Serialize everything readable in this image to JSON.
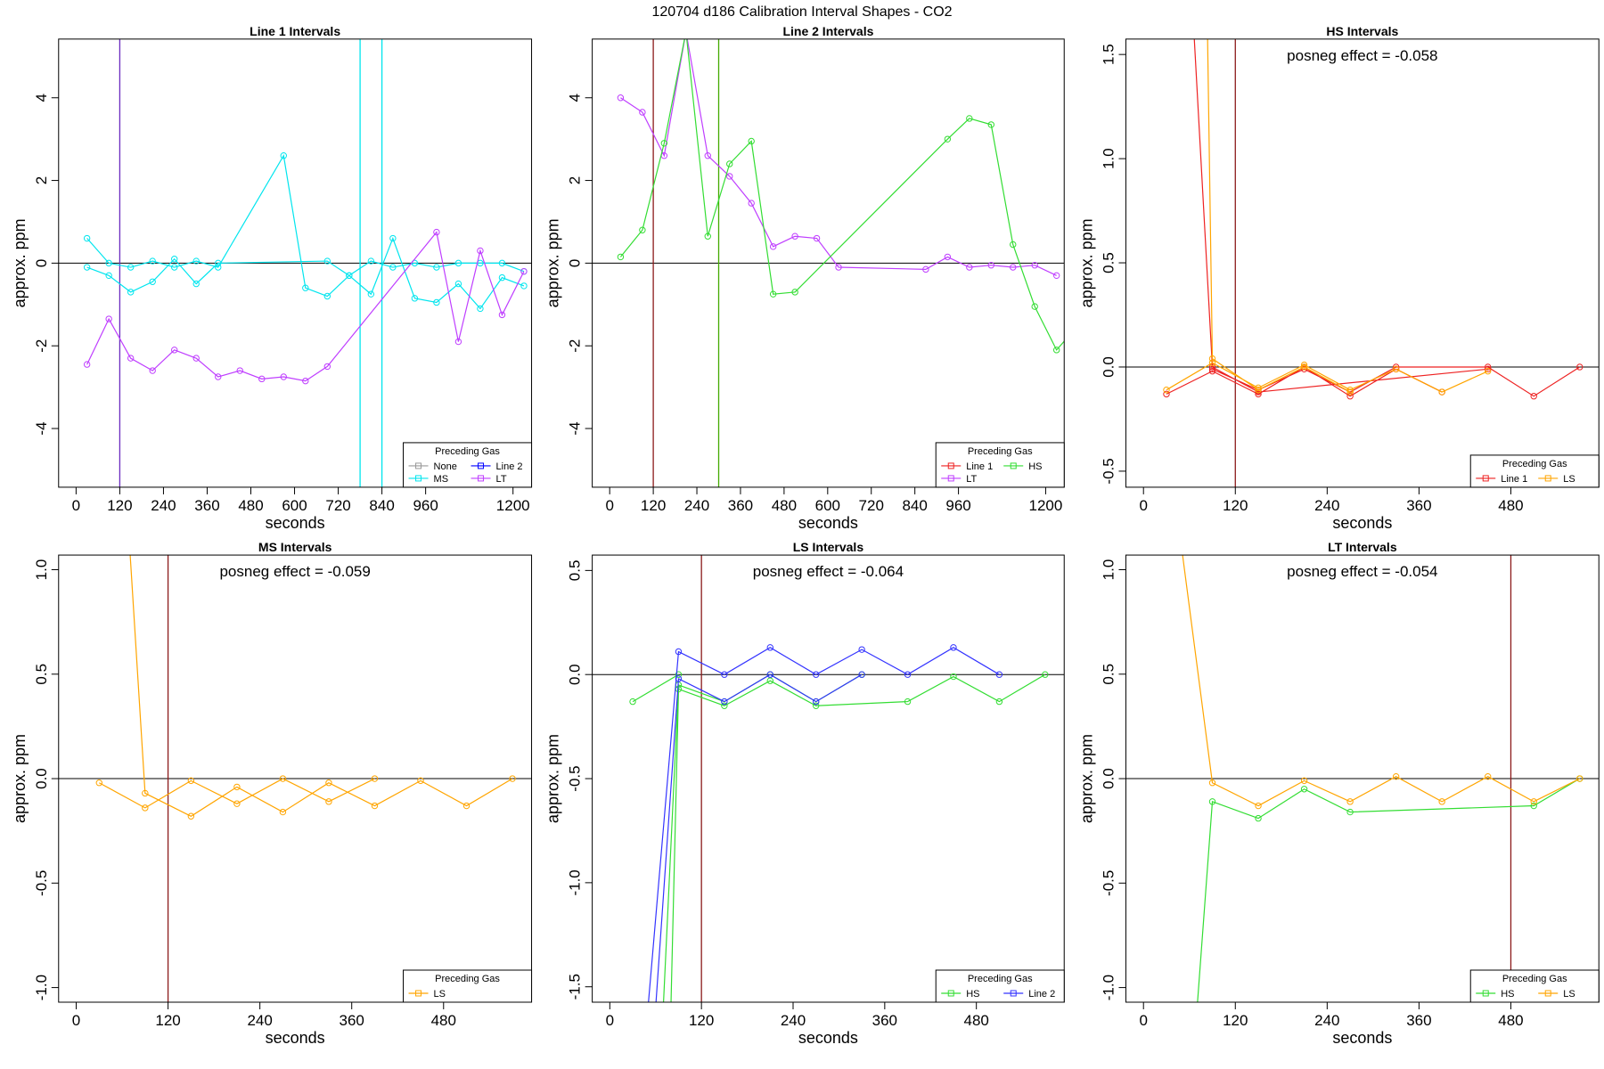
{
  "title": "120704  d186   Calibration Interval Shapes - CO2",
  "chart_data": [
    {
      "type": "line",
      "title": "Line 1 Intervals",
      "xlabel": "seconds",
      "ylabel": "approx. ppm",
      "xlim": [
        -48,
        1251
      ],
      "ylim": [
        -5.42,
        5.42
      ],
      "xticks": [
        0,
        120,
        240,
        360,
        480,
        600,
        720,
        840,
        960,
        1200
      ],
      "yticks": [
        -4,
        -2,
        0,
        2,
        4
      ],
      "hline": 0,
      "vlines": [
        {
          "value": 120,
          "color": "#6a2cbf"
        },
        {
          "value": 780,
          "color": "#00e5ee"
        },
        {
          "value": 840,
          "color": "#00e5ee"
        }
      ],
      "legend_title": "Preceding Gas",
      "legend": "bottomright",
      "series": [
        {
          "name": "None",
          "color": "#999999",
          "x": [],
          "values": []
        },
        {
          "name": "MS",
          "color": "#00e5ee",
          "x": [
            30,
            90,
            150,
            210,
            270,
            330,
            390,
            570,
            630,
            690,
            750,
            810,
            870,
            930,
            990,
            1050,
            1110,
            1170,
            1230,
            null,
            30,
            90,
            150,
            210,
            270,
            330,
            390,
            690,
            750,
            810,
            870,
            930,
            990,
            1050,
            1110,
            1170,
            1230
          ],
          "values": [
            0.6,
            0.0,
            -0.1,
            0.05,
            -0.1,
            0.05,
            -0.1,
            2.6,
            -0.6,
            -0.8,
            -0.3,
            -0.75,
            0.6,
            -0.85,
            -0.95,
            -0.5,
            -1.1,
            -0.35,
            -0.55,
            null,
            -0.1,
            -0.3,
            -0.7,
            -0.45,
            0.1,
            -0.5,
            0.0,
            0.05,
            -0.3,
            0.05,
            -0.1,
            0.0,
            -0.1,
            0.0,
            0.0,
            0.0,
            -0.2
          ]
        },
        {
          "name": "Line 2",
          "color": "#0000ff",
          "x": [],
          "values": []
        },
        {
          "name": "LT",
          "color": "#bf3eff",
          "x": [
            30,
            90,
            150,
            210,
            270,
            330,
            390,
            450,
            510,
            570,
            630,
            690,
            990,
            1050,
            1110,
            1170,
            1230
          ],
          "values": [
            -2.45,
            -1.35,
            -2.3,
            -2.6,
            -2.1,
            -2.3,
            -2.75,
            -2.6,
            -2.8,
            -2.75,
            -2.85,
            -2.5,
            0.75,
            -1.9,
            0.3,
            -1.25,
            -0.2
          ]
        }
      ]
    },
    {
      "type": "line",
      "title": "Line 2 Intervals",
      "xlabel": "seconds",
      "ylabel": "approx. ppm",
      "xlim": [
        -48,
        1251
      ],
      "ylim": [
        -5.42,
        5.42
      ],
      "xticks": [
        0,
        120,
        240,
        360,
        480,
        600,
        720,
        840,
        960,
        1200
      ],
      "yticks": [
        -4,
        -2,
        0,
        2,
        4
      ],
      "hline": 0,
      "vlines": [
        {
          "value": 120,
          "color": "#8b1a1a"
        },
        {
          "value": 300,
          "color": "#44aa00"
        }
      ],
      "legend_title": "Preceding Gas",
      "legend": "bottomright",
      "series": [
        {
          "name": "Line 1",
          "color": "#ee2222",
          "x": [],
          "values": []
        },
        {
          "name": "LT",
          "color": "#bf3eff",
          "x": [
            30,
            90,
            150,
            210,
            270,
            330,
            390,
            450,
            510,
            570,
            630,
            870,
            930,
            990,
            1050,
            1110,
            1170,
            1230
          ],
          "values": [
            4.0,
            3.65,
            2.6,
            5.6,
            2.6,
            2.1,
            1.45,
            0.4,
            0.65,
            0.6,
            -0.1,
            -0.15,
            0.15,
            -0.1,
            -0.05,
            -0.1,
            -0.05,
            -0.3
          ]
        },
        {
          "name": "HS",
          "color": "#33dd33",
          "x": [
            30,
            90,
            150,
            210,
            270,
            330,
            390,
            450,
            510,
            930,
            990,
            1050,
            1110,
            1170,
            1230,
            1260
          ],
          "values": [
            0.15,
            0.8,
            2.9,
            5.6,
            0.65,
            2.4,
            2.95,
            -0.75,
            -0.7,
            3.0,
            3.5,
            3.35,
            0.45,
            -1.05,
            -2.1,
            -1.8
          ]
        }
      ]
    },
    {
      "type": "line",
      "title": "HS Intervals",
      "xlabel": "seconds",
      "ylabel": "approx. ppm",
      "annotation": "posneg effect = -0.058",
      "xlim": [
        -23,
        595
      ],
      "ylim": [
        -0.577,
        1.574
      ],
      "xticks": [
        0,
        120,
        240,
        360,
        480
      ],
      "yticks": [
        -0.5,
        {
          "value": 0,
          "label": "0.0"
        },
        0.5,
        {
          "value": 1,
          "label": "1.0"
        },
        1.5
      ],
      "hline": 0,
      "vlines": [
        {
          "value": 120,
          "color": "#8b1a1a"
        }
      ],
      "legend_title": "Preceding Gas",
      "legend": "bottomright",
      "series": [
        {
          "name": "Line 1",
          "color": "#ee2222",
          "x": [
            30,
            90,
            150,
            210,
            270,
            330,
            390,
            null,
            60,
            90,
            150,
            450,
            null,
            90,
            150,
            210,
            270,
            330,
            450,
            510,
            570
          ],
          "values": [
            -0.13,
            -0.02,
            -0.13,
            0.0,
            -0.14,
            -0.01,
            -0.12,
            null,
            2.0,
            0.0,
            -0.12,
            -0.01,
            null,
            -0.01,
            -0.11,
            -0.01,
            -0.12,
            0.0,
            0.0,
            -0.14,
            0.0
          ]
        },
        {
          "name": "LS",
          "color": "#ffa500",
          "x": [
            30,
            90,
            150,
            210,
            270,
            330,
            390,
            450,
            null,
            80,
            90,
            150,
            210,
            270
          ],
          "values": [
            -0.11,
            0.02,
            -0.1,
            0.01,
            -0.11,
            -0.01,
            -0.12,
            -0.02,
            null,
            2.5,
            0.04,
            -0.11,
            0.0,
            -0.12
          ]
        }
      ]
    },
    {
      "type": "line",
      "title": "MS Intervals",
      "xlabel": "seconds",
      "ylabel": "approx. ppm",
      "annotation": "posneg effect = -0.059",
      "xlim": [
        -23,
        595
      ],
      "ylim": [
        -1.07,
        1.07
      ],
      "xticks": [
        0,
        120,
        240,
        360,
        480
      ],
      "yticks": [
        {
          "value": -1,
          "label": "-1.0"
        },
        -0.5,
        {
          "value": 0,
          "label": "0.0"
        },
        0.5,
        {
          "value": 1,
          "label": "1.0"
        }
      ],
      "hline": 0,
      "vlines": [
        {
          "value": 120,
          "color": "#8b1a1a"
        }
      ],
      "legend_title": "Preceding Gas",
      "legend": "bottomright",
      "series": [
        {
          "name": "LS",
          "color": "#ffa500",
          "x": [
            30,
            90,
            150,
            210,
            270,
            330,
            390,
            null,
            70,
            90,
            150,
            210,
            270,
            330,
            390,
            450,
            510,
            570
          ],
          "values": [
            -0.02,
            -0.14,
            -0.01,
            -0.12,
            0.0,
            -0.11,
            0.0,
            null,
            1.1,
            -0.07,
            -0.18,
            -0.04,
            -0.16,
            -0.02,
            -0.13,
            -0.01,
            -0.13,
            0.0
          ]
        }
      ]
    },
    {
      "type": "line",
      "title": "LS Intervals",
      "xlabel": "seconds",
      "ylabel": "approx. ppm",
      "annotation": "posneg effect = -0.064",
      "xlim": [
        -23,
        595
      ],
      "ylim": [
        -1.574,
        0.574
      ],
      "xticks": [
        0,
        120,
        240,
        360,
        480
      ],
      "yticks": [
        -1.5,
        {
          "value": -1,
          "label": "-1.0"
        },
        -0.5,
        {
          "value": 0,
          "label": "0.0"
        },
        0.5
      ],
      "hline": 0,
      "vlines": [
        {
          "value": 120,
          "color": "#8b1a1a"
        }
      ],
      "legend_title": "Preceding Gas",
      "legend": "bottomright",
      "series": [
        {
          "name": "HS",
          "color": "#33dd33",
          "x": [
            70,
            90,
            150,
            210,
            270,
            330,
            null,
            80,
            90,
            150,
            210,
            270,
            390,
            450,
            510,
            570,
            null,
            30,
            90
          ],
          "values": [
            -1.6,
            -0.05,
            -0.13,
            0.0,
            -0.13,
            0.0,
            null,
            -1.6,
            -0.07,
            -0.15,
            -0.03,
            -0.15,
            -0.13,
            -0.01,
            -0.13,
            0.0,
            null,
            -0.13,
            0.0
          ]
        },
        {
          "name": "Line 2",
          "color": "#3333ff",
          "x": [
            50,
            90,
            150,
            210,
            270,
            330,
            390,
            450,
            510,
            null,
            60,
            90,
            150,
            210,
            270,
            330
          ],
          "values": [
            -1.6,
            0.11,
            0.0,
            0.13,
            0.0,
            0.12,
            0.0,
            0.13,
            0.0,
            null,
            -1.6,
            -0.02,
            -0.13,
            0.0,
            -0.13,
            0.0
          ]
        }
      ]
    },
    {
      "type": "line",
      "title": "LT Intervals",
      "xlabel": "seconds",
      "ylabel": "approx. ppm",
      "annotation": "posneg effect = -0.054",
      "xlim": [
        -23,
        595
      ],
      "ylim": [
        -1.07,
        1.07
      ],
      "xticks": [
        0,
        120,
        240,
        360,
        480
      ],
      "yticks": [
        {
          "value": -1,
          "label": "-1.0"
        },
        -0.5,
        {
          "value": 0,
          "label": "0.0"
        },
        0.5,
        {
          "value": 1,
          "label": "1.0"
        }
      ],
      "hline": 0,
      "vlines": [
        {
          "value": 480,
          "color": "#8b1a1a"
        }
      ],
      "legend_title": "Preceding Gas",
      "legend": "bottomright",
      "series": [
        {
          "name": "HS",
          "color": "#33dd33",
          "x": [
            70,
            90,
            150,
            210,
            270,
            510,
            570
          ],
          "values": [
            -1.1,
            -0.11,
            -0.19,
            -0.05,
            -0.16,
            -0.13,
            0.0
          ]
        },
        {
          "name": "LS",
          "color": "#ffa500",
          "x": [
            50,
            90,
            150,
            210,
            270,
            330,
            390,
            450,
            510,
            570
          ],
          "values": [
            1.1,
            -0.02,
            -0.13,
            -0.01,
            -0.11,
            0.01,
            -0.11,
            0.01,
            -0.11,
            0.0
          ]
        }
      ]
    }
  ]
}
